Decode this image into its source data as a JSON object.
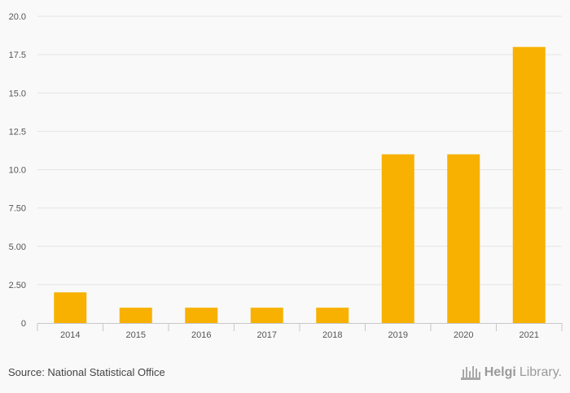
{
  "chart_data": {
    "type": "bar",
    "categories": [
      "2014",
      "2015",
      "2016",
      "2017",
      "2018",
      "2019",
      "2020",
      "2021"
    ],
    "values": [
      2.0,
      1.0,
      1.0,
      1.0,
      1.0,
      11.0,
      11.0,
      18.0
    ],
    "ylim": [
      0,
      20
    ],
    "yticks": [
      "0",
      "2.50",
      "5.00",
      "7.50",
      "10.0",
      "12.5",
      "15.0",
      "17.5",
      "20.0"
    ],
    "title": "",
    "xlabel": "",
    "ylabel": "",
    "bar_color": "#f8b100",
    "grid": true
  },
  "footer": {
    "source": "Source: National Statistical Office",
    "brand_name": "Helgi",
    "brand_suffix": "Library."
  },
  "colors": {
    "grid": "#e4e4e4",
    "axis_text": "#555555",
    "background": "#f9f9f9"
  }
}
